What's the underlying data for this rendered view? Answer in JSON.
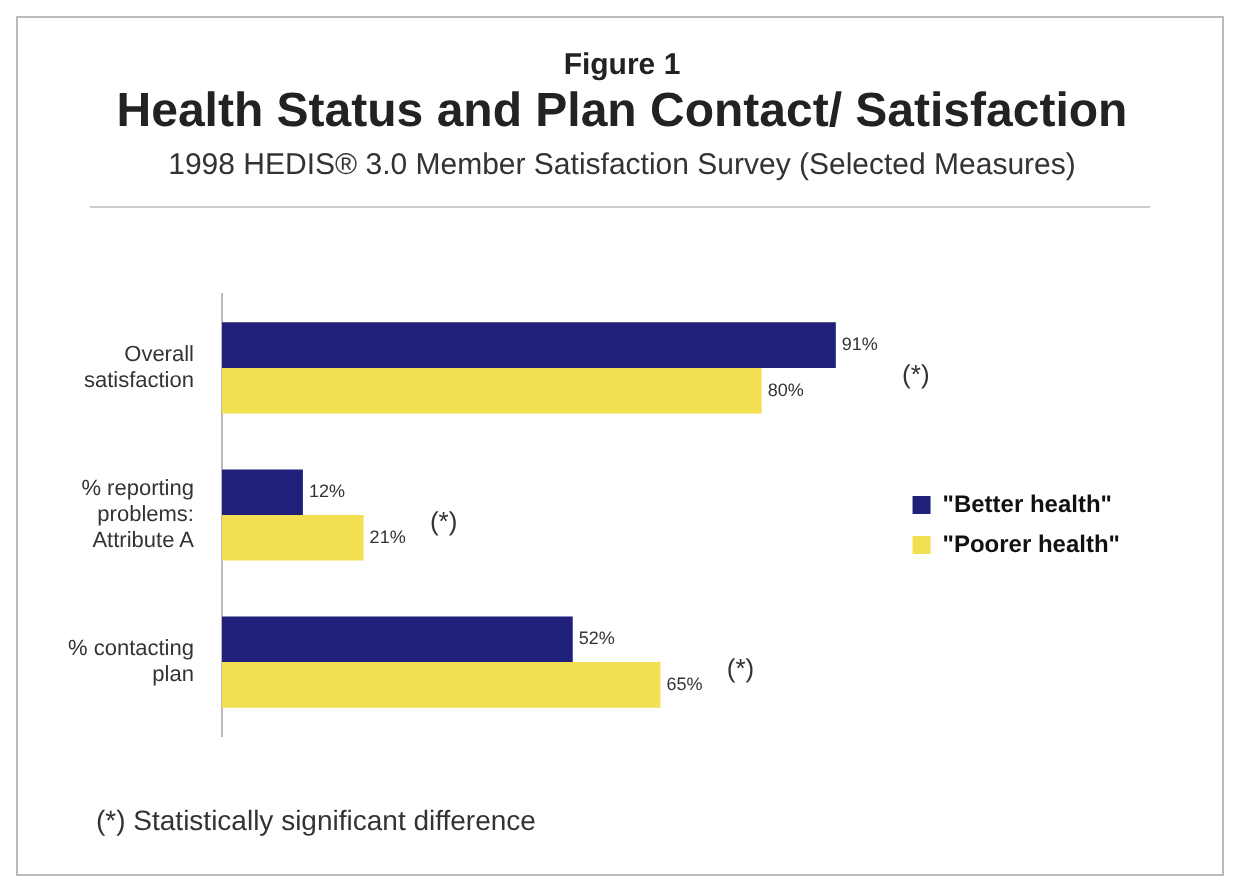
{
  "chart_data": {
    "type": "bar",
    "orientation": "horizontal",
    "title": "Health Status and Plan Contact/ Satisfaction",
    "subtitle": "1998 HEDIS® 3.0 Member Satisfaction Survey (Selected Measures)",
    "categories": [
      "Overall satisfaction",
      "% reporting problems: Attribute A",
      "% contacting plan"
    ],
    "series": [
      {
        "name": "\"Better health\"",
        "color": "#20207a",
        "values": [
          91,
          12,
          52
        ],
        "value_labels": [
          "91%",
          "12%",
          "52%"
        ]
      },
      {
        "name": "\"Poorer health\"",
        "color": "#f2df52",
        "values": [
          80,
          21,
          65
        ],
        "value_labels": [
          "80%",
          "21%",
          "65%"
        ]
      }
    ],
    "legend": "right",
    "annotations": [
      "Figure 1",
      "(*)",
      "(*)",
      "(*)",
      "(*) Statistically significant difference"
    ]
  }
}
